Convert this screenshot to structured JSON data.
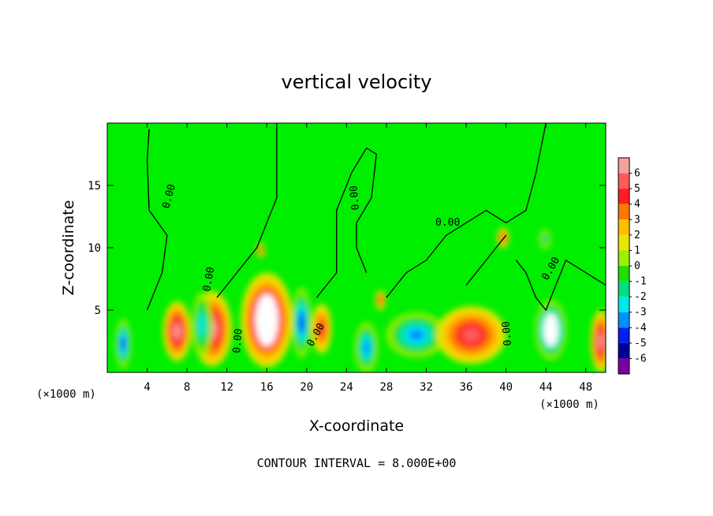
{
  "chart_data": {
    "type": "heatmap",
    "title": "vertical velocity",
    "xlabel": "X-coordinate",
    "ylabel": "Z-coordinate",
    "x_unit_left": "(×1000 m)",
    "x_unit_right": "(×1000 m)",
    "xlim": [
      0,
      50
    ],
    "ylim": [
      0,
      20
    ],
    "x_ticks": [
      4,
      8,
      12,
      16,
      20,
      24,
      28,
      32,
      36,
      40,
      44,
      48
    ],
    "x_tick_labels": [
      "4",
      "8",
      "12",
      "16",
      "20",
      "24",
      "28",
      "32",
      "36",
      "40",
      "44",
      "48"
    ],
    "y_ticks": [
      5,
      10,
      15
    ],
    "y_tick_labels": [
      "5",
      "10",
      "15"
    ],
    "footer": "CONTOUR INTERVAL = 8.000E+00",
    "contour_label": "0.00",
    "colorbar": {
      "levels": [
        "6",
        "5",
        "4",
        "3",
        "2",
        "1",
        "0",
        "-1",
        "-2",
        "-3",
        "-4",
        "-5",
        "-6"
      ],
      "colors": [
        "#f5a0a0",
        "#ff5a5a",
        "#ff1e1e",
        "#ff7a00",
        "#ffc000",
        "#e6e600",
        "#9cf000",
        "#20e000",
        "#00e080",
        "#00e8e8",
        "#0090ff",
        "#0020f0",
        "#00009a",
        "#7a00a0"
      ]
    },
    "base_color": "#00ee00",
    "features": [
      {
        "x": 1.6,
        "z": 2.3,
        "rx": 0.8,
        "rz": 2.0,
        "value": -6
      },
      {
        "x": 7.0,
        "z": 3.3,
        "rx": 1.4,
        "rz": 2.4,
        "value": 6
      },
      {
        "x": 10.5,
        "z": 3.5,
        "rx": 2.0,
        "rz": 3.0,
        "value": 6
      },
      {
        "x": 9.5,
        "z": 3.8,
        "rx": 1.0,
        "rz": 2.6,
        "value": -4
      },
      {
        "x": 16.0,
        "z": 4.2,
        "rx": 2.6,
        "rz": 3.8,
        "value": 7
      },
      {
        "x": 19.5,
        "z": 4.0,
        "rx": 1.0,
        "rz": 2.8,
        "value": -6
      },
      {
        "x": 21.5,
        "z": 3.5,
        "rx": 1.0,
        "rz": 2.0,
        "value": 4
      },
      {
        "x": 26.0,
        "z": 2.0,
        "rx": 1.2,
        "rz": 2.0,
        "value": -5
      },
      {
        "x": 31.0,
        "z": 3.0,
        "rx": 3.0,
        "rz": 1.8,
        "value": -5
      },
      {
        "x": 36.5,
        "z": 3.0,
        "rx": 3.5,
        "rz": 2.3,
        "value": 5
      },
      {
        "x": 44.5,
        "z": 3.4,
        "rx": 1.6,
        "rz": 2.4,
        "value": -7
      },
      {
        "x": 49.5,
        "z": 2.5,
        "rx": 1.0,
        "rz": 2.5,
        "value": 6
      },
      {
        "x": 27.4,
        "z": 5.8,
        "rx": 0.5,
        "rz": 0.8,
        "value": 4
      },
      {
        "x": 39.7,
        "z": 10.8,
        "rx": 0.6,
        "rz": 0.8,
        "value": 4
      },
      {
        "x": 43.9,
        "z": 10.7,
        "rx": 0.6,
        "rz": 0.8,
        "value": -3
      },
      {
        "x": 15.4,
        "z": 9.8,
        "rx": 0.4,
        "rz": 0.6,
        "value": 4
      }
    ]
  }
}
